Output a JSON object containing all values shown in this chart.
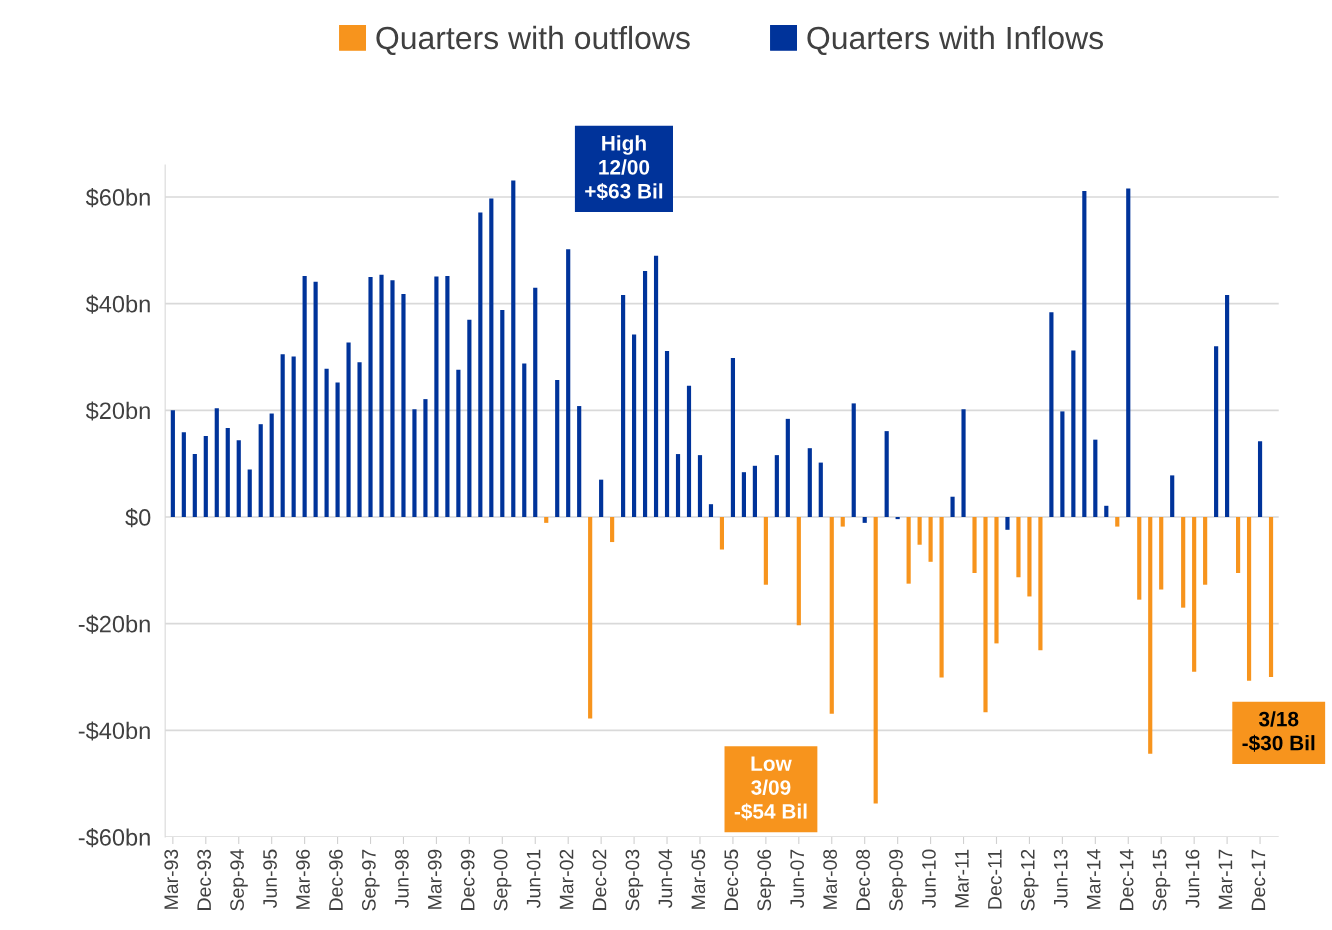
{
  "chart_data": {
    "type": "bar",
    "categories": [
      "Mar-93",
      null,
      null,
      "Dec-93",
      null,
      null,
      "Sep-94",
      null,
      null,
      "Jun-95",
      null,
      null,
      "Mar-96",
      null,
      null,
      "Dec-96",
      null,
      null,
      "Sep-97",
      null,
      null,
      "Jun-98",
      null,
      null,
      "Mar-99",
      null,
      null,
      "Dec-99",
      null,
      null,
      "Sep-00",
      null,
      null,
      "Jun-01",
      null,
      null,
      "Mar-02",
      null,
      null,
      "Dec-02",
      null,
      null,
      "Sep-03",
      null,
      null,
      "Jun-04",
      null,
      null,
      "Mar-05",
      null,
      null,
      "Dec-05",
      null,
      null,
      "Sep-06",
      null,
      null,
      "Jun-07",
      null,
      null,
      "Mar-08",
      null,
      null,
      "Dec-08",
      null,
      null,
      "Sep-09",
      null,
      null,
      "Jun-10",
      null,
      null,
      "Mar-11",
      null,
      null,
      "Dec-11",
      null,
      null,
      "Sep-12",
      null,
      null,
      "Jun-13",
      null,
      null,
      "Mar-14",
      null,
      null,
      "Dec-14",
      null,
      null,
      "Sep-15",
      null,
      null,
      "Jun-16",
      null,
      null,
      "Mar-17",
      null,
      null,
      "Dec-17",
      null
    ],
    "series": [
      {
        "name": "Quarters with outflows",
        "color": "#f7941d",
        "values": [
          null,
          null,
          null,
          null,
          null,
          null,
          null,
          null,
          null,
          null,
          null,
          null,
          null,
          null,
          null,
          null,
          null,
          null,
          null,
          null,
          null,
          null,
          null,
          null,
          null,
          null,
          null,
          null,
          null,
          null,
          null,
          null,
          null,
          null,
          -1.1,
          null,
          null,
          null,
          -37.8,
          null,
          -4.7,
          null,
          null,
          null,
          null,
          null,
          null,
          null,
          null,
          null,
          -6.1,
          null,
          null,
          null,
          -12.7,
          null,
          null,
          -20.3,
          null,
          null,
          -36.9,
          -1.8,
          null,
          null,
          -53.7,
          null,
          null,
          -12.5,
          -5.2,
          -8.4,
          -30.1,
          null,
          null,
          -10.5,
          -36.6,
          -23.7,
          null,
          -11.3,
          -14.9,
          -25.0,
          null,
          null,
          null,
          null,
          null,
          null,
          -1.8,
          null,
          -15.5,
          -44.4,
          -13.6,
          null,
          -17.0,
          -29.0,
          -12.7,
          null,
          null,
          -10.5,
          -30.7,
          null,
          -30
        ]
      },
      {
        "name": "Quarters with Inflows",
        "color": "#00339a",
        "values": [
          20.0,
          15.9,
          11.8,
          15.2,
          20.4,
          16.7,
          14.4,
          8.9,
          17.4,
          19.4,
          30.5,
          30.1,
          45.2,
          44.1,
          27.8,
          25.2,
          32.7,
          29.0,
          45.0,
          45.4,
          44.4,
          41.8,
          20.2,
          22.1,
          45.1,
          45.2,
          27.6,
          37.0,
          57.1,
          59.7,
          38.8,
          63.1,
          28.8,
          43.0,
          null,
          25.7,
          50.2,
          20.8,
          null,
          7.0,
          null,
          41.6,
          34.2,
          46.1,
          49.0,
          31.1,
          11.8,
          24.6,
          11.6,
          2.4,
          null,
          29.8,
          8.4,
          9.6,
          null,
          11.6,
          18.4,
          null,
          12.9,
          10.2,
          null,
          null,
          21.3,
          -1.1,
          null,
          16.1,
          -0.4,
          null,
          null,
          null,
          null,
          3.8,
          20.2,
          null,
          null,
          null,
          -2.4,
          null,
          null,
          null,
          38.4,
          19.8,
          31.2,
          61.1,
          14.5,
          2.1,
          null,
          61.6,
          null,
          null,
          null,
          7.8,
          null,
          null,
          null,
          32.0,
          41.6,
          null,
          null,
          14.2,
          null
        ]
      }
    ],
    "ylim": [
      -60,
      66
    ],
    "yticks": [
      {
        "value": -60,
        "label": "-$60bn"
      },
      {
        "value": -40,
        "label": "-$40bn"
      },
      {
        "value": -20,
        "label": "-$20bn"
      },
      {
        "value": 0,
        "label": "$0"
      },
      {
        "value": 20,
        "label": "$20bn"
      },
      {
        "value": 40,
        "label": "$40bn"
      },
      {
        "value": 60,
        "label": "$60bn"
      }
    ],
    "grid": "y",
    "legend": "top",
    "annotations": [
      "High\n12/00\n+$63 Bil",
      "Low\n3/09\n-$54 Bil",
      "3/18\n-$30 Bil"
    ]
  }
}
